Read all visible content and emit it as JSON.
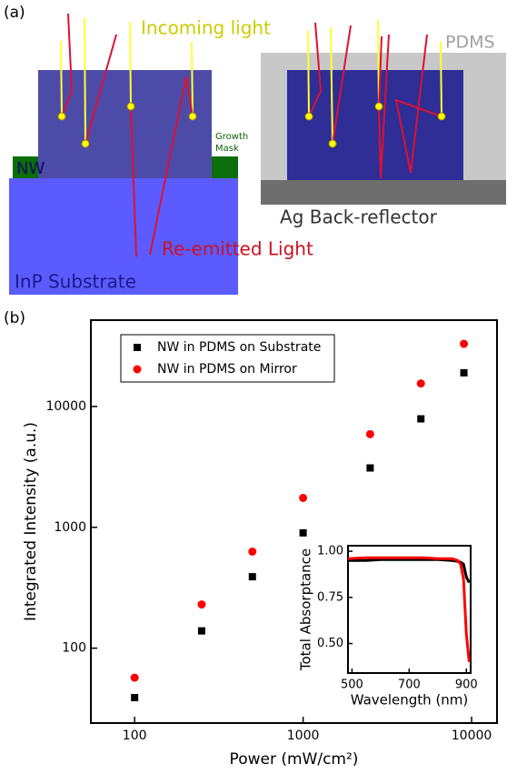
{
  "diagram": {
    "panel_label": "(a)",
    "incoming": "Incoming light",
    "pdms": "PDMS",
    "growth_mask": [
      "Growth",
      "Mask"
    ],
    "nw": "NW",
    "reflector": "Ag Back-reflector",
    "reemitted": "Re-emitted Light",
    "substrate": "InP Substrate"
  },
  "panel_b_label": "(b)",
  "chart_data": [
    {
      "type": "scatter",
      "x_label": "Power (mW/cm²)",
      "y_label": "Integrated Intensity (a.u.)",
      "x": [
        100,
        250,
        500,
        1000,
        2500,
        5000,
        9000
      ],
      "series": [
        {
          "name": "NW in PDMS on Substrate",
          "color": "#000000",
          "marker": "square",
          "values": [
            39,
            139,
            390,
            900,
            3100,
            7900,
            19000
          ]
        },
        {
          "name": "NW in PDMS on Mirror",
          "color": "#ff0000",
          "marker": "circle",
          "values": [
            57,
            230,
            630,
            1750,
            5900,
            15500,
            33000
          ]
        }
      ],
      "xscale": "log",
      "yscale": "log",
      "xlim": [
        55,
        14150
      ],
      "ylim": [
        24,
        51800
      ],
      "xticks": [
        100,
        1000,
        10000
      ],
      "yticks": [
        100,
        1000,
        10000
      ],
      "legend": "upper left"
    },
    {
      "type": "line",
      "x_label": "Wavelength (nm)",
      "y_label": "Total Absorptance",
      "x": [
        486,
        550,
        600,
        650,
        700,
        750,
        800,
        850,
        870,
        880,
        890,
        900,
        910
      ],
      "series": [
        {
          "color": "#000000",
          "values": [
            0.95,
            0.95,
            0.955,
            0.955,
            0.955,
            0.955,
            0.955,
            0.95,
            0.945,
            0.94,
            0.93,
            0.86,
            0.83
          ]
        },
        {
          "color": "#ff0000",
          "values": [
            0.96,
            0.965,
            0.965,
            0.965,
            0.965,
            0.965,
            0.96,
            0.96,
            0.95,
            0.93,
            0.85,
            0.55,
            0.4
          ]
        }
      ],
      "xlim": [
        486,
        915
      ],
      "ylim": [
        0.34,
        1.03
      ],
      "xticks": [
        500,
        700,
        900
      ],
      "yticks": [
        {
          "value": 0.5,
          "label": "0.50"
        },
        {
          "value": 0.75,
          "label": "0.75"
        },
        {
          "value": 1.0,
          "label": "1.00"
        }
      ]
    }
  ]
}
